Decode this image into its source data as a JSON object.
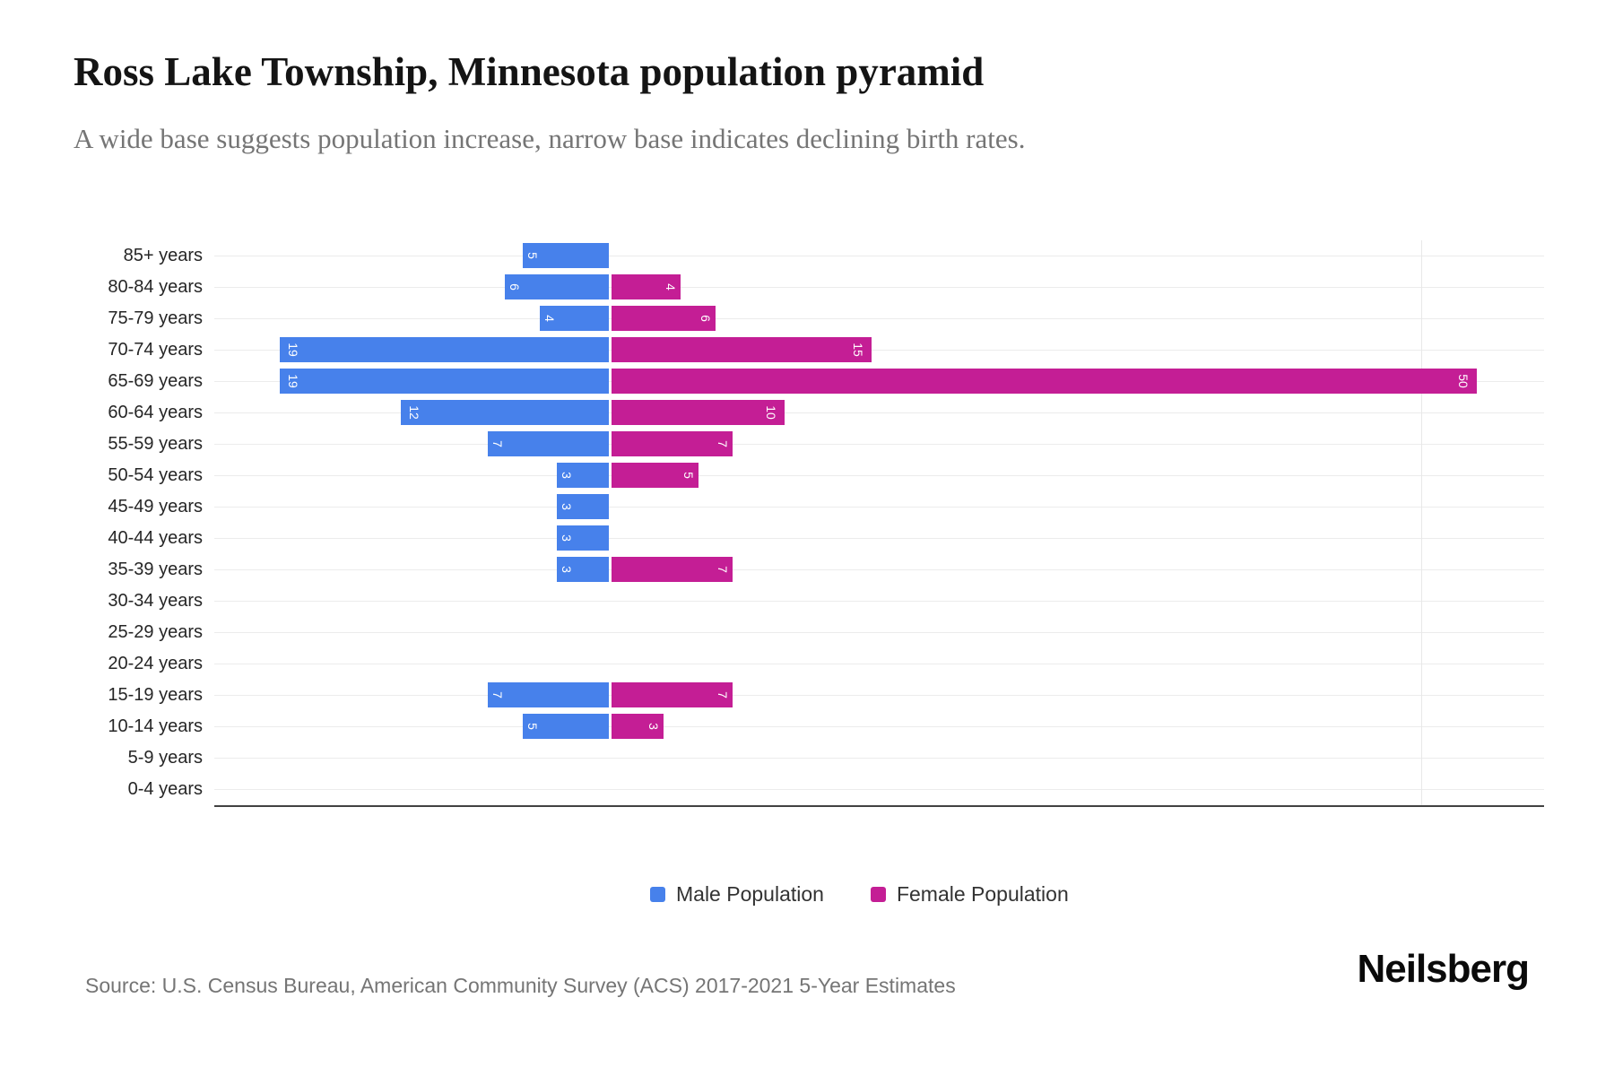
{
  "header": {
    "title": "Ross Lake Township, Minnesota population pyramid",
    "subtitle": "A wide base suggests population increase, narrow base indicates declining birth rates."
  },
  "chart_data": {
    "type": "bar",
    "subtype": "population_pyramid",
    "title": "Ross Lake Township, Minnesota population pyramid",
    "categories": [
      "85+ years",
      "80-84 years",
      "75-79 years",
      "70-74 years",
      "65-69 years",
      "60-64 years",
      "55-59 years",
      "50-54 years",
      "45-49 years",
      "40-44 years",
      "35-39 years",
      "30-34 years",
      "25-29 years",
      "20-24 years",
      "15-19 years",
      "10-14 years",
      "5-9 years",
      "0-4 years"
    ],
    "series": [
      {
        "name": "Male Population",
        "side": "left",
        "color": "#4781EB",
        "values": [
          5,
          6,
          4,
          19,
          19,
          12,
          7,
          3,
          3,
          3,
          3,
          0,
          0,
          0,
          7,
          5,
          0,
          0
        ]
      },
      {
        "name": "Female Population",
        "side": "right",
        "color": "#C41E95",
        "values": [
          0,
          4,
          6,
          15,
          50,
          10,
          7,
          5,
          0,
          0,
          7,
          0,
          0,
          0,
          7,
          3,
          0,
          0
        ]
      }
    ],
    "value_axis": {
      "max_per_side": 50,
      "ticks_visible": false
    },
    "bar_labels": {
      "rotation_deg": 90,
      "color": "#ffffff",
      "shown_only_when_nonzero": true
    },
    "grid": {
      "horizontal_category_lines": true,
      "center_divider": true
    },
    "legend_position": "bottom-center"
  },
  "legend": {
    "male_label": "Male Population",
    "female_label": "Female Population"
  },
  "footer": {
    "source": "Source: U.S. Census Bureau, American Community Survey (ACS) 2017-2021 5-Year Estimates",
    "brand": "Neilsberg"
  },
  "colors": {
    "male": "#4781EB",
    "female": "#C41E95",
    "gridline": "#ececec",
    "baseline": "#424242",
    "subtitle_text": "#757575"
  }
}
